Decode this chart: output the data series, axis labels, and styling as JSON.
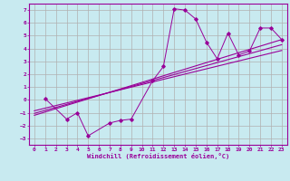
{
  "xlabel": "Windchill (Refroidissement éolien,°C)",
  "bg_color": "#c8eaf0",
  "grid_color": "#b0b0b0",
  "line_color": "#990099",
  "xlim": [
    -0.5,
    23.5
  ],
  "ylim": [
    -3.5,
    7.5
  ],
  "xticks": [
    0,
    1,
    2,
    3,
    4,
    5,
    6,
    7,
    8,
    9,
    10,
    11,
    12,
    13,
    14,
    15,
    16,
    17,
    18,
    19,
    20,
    21,
    22,
    23
  ],
  "yticks": [
    -3,
    -2,
    -1,
    0,
    1,
    2,
    3,
    4,
    5,
    6,
    7
  ],
  "scatter_x": [
    1,
    3,
    4,
    5,
    7,
    8,
    9,
    11,
    12,
    13,
    14,
    15,
    16,
    17,
    18,
    19,
    20,
    21,
    22,
    23
  ],
  "scatter_y": [
    0.1,
    -1.5,
    -1.0,
    -2.8,
    -1.8,
    -1.6,
    -1.5,
    1.5,
    2.6,
    7.1,
    7.0,
    6.3,
    4.5,
    3.2,
    5.2,
    3.5,
    3.8,
    5.6,
    5.6,
    4.7
  ],
  "line1_x": [
    0,
    23
  ],
  "line1_y": [
    -1.2,
    4.7
  ],
  "line2_x": [
    0,
    23
  ],
  "line2_y": [
    -1.05,
    4.3
  ],
  "line3_x": [
    0,
    23
  ],
  "line3_y": [
    -0.85,
    3.85
  ]
}
